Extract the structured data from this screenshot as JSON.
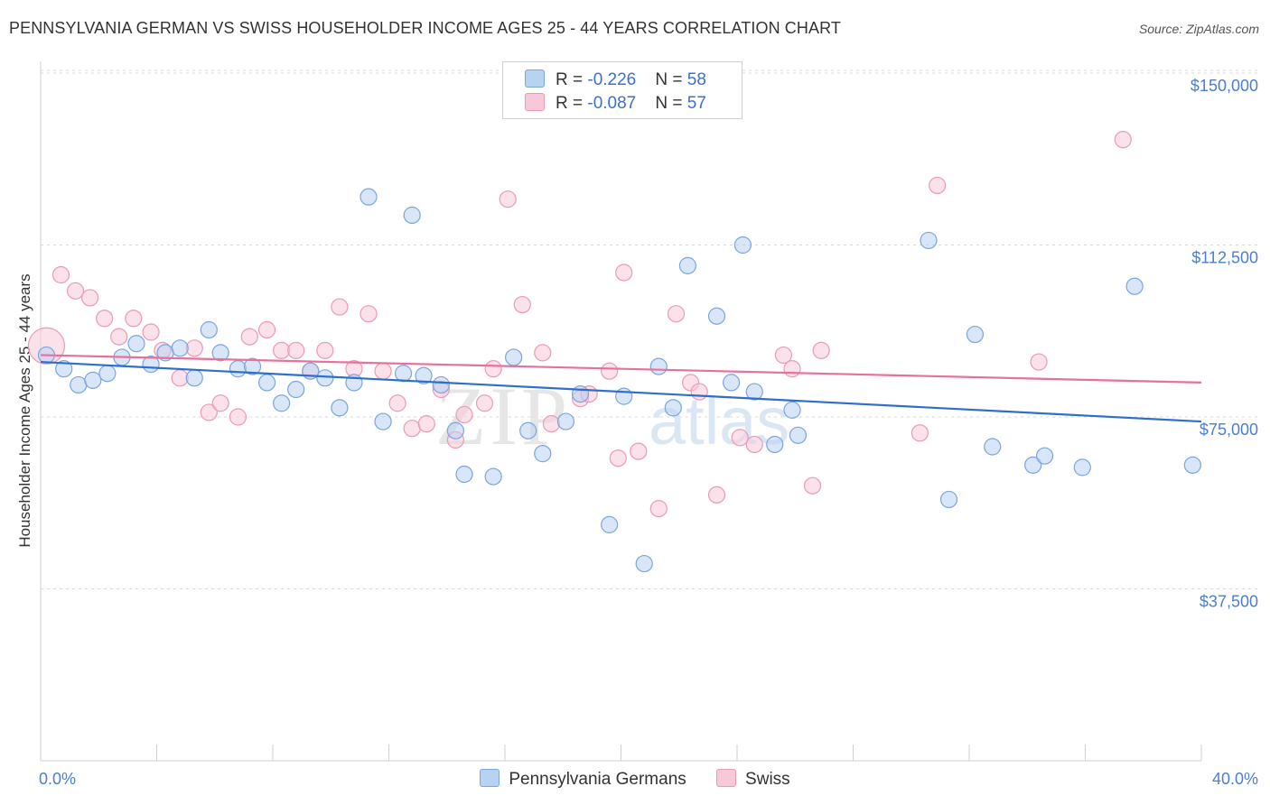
{
  "header": {
    "title": "PENNSYLVANIA GERMAN VS SWISS HOUSEHOLDER INCOME AGES 25 - 44 YEARS CORRELATION CHART",
    "source": "Source: ZipAtlas.com"
  },
  "legend": {
    "series1": {
      "r_label": "R = ",
      "r_value": "-0.226",
      "n_label": "N = ",
      "n_value": "58"
    },
    "series2": {
      "r_label": "R = ",
      "r_value": "-0.087",
      "n_label": "N = ",
      "n_value": "57"
    }
  },
  "watermark": {
    "zip": "ZIP",
    "atlas": "atlas"
  },
  "colors": {
    "blue_fill": "#b8d2f2",
    "blue_stroke": "#7aa5dd",
    "blue_line": "#2e6fce",
    "pink_fill": "#f8c8d8",
    "pink_stroke": "#eb9ab4",
    "pink_line": "#e8709a",
    "axis_text": "#4a7fd0",
    "grid": "#d8d8d8"
  },
  "chart_data": {
    "type": "scatter",
    "title": "PENNSYLVANIA GERMAN VS SWISS HOUSEHOLDER INCOME AGES 25 - 44 YEARS CORRELATION CHART",
    "xlabel": "",
    "ylabel": "Householder Income Ages 25 - 44 years",
    "xlim": [
      0,
      40
    ],
    "ylim": [
      0,
      155000
    ],
    "x_tick_labels": [
      "0.0%",
      "40.0%"
    ],
    "y_ticks": [
      37500,
      75000,
      112500,
      150000
    ],
    "y_tick_labels": [
      "$37,500",
      "$75,000",
      "$112,500",
      "$150,000"
    ],
    "grid": "horizontal dashed",
    "legend_position": "top-center and bottom",
    "series": [
      {
        "name": "Pennsylvania Germans",
        "color": "#7aa5dd",
        "trend": [
          [
            0,
            87000
          ],
          [
            40,
            74000
          ]
        ],
        "points": [
          [
            0.2,
            88500
          ],
          [
            0.8,
            85500
          ],
          [
            1.3,
            82000
          ],
          [
            1.8,
            83000
          ],
          [
            2.3,
            84500
          ],
          [
            2.8,
            88000
          ],
          [
            3.3,
            91000
          ],
          [
            3.8,
            86500
          ],
          [
            4.3,
            89000
          ],
          [
            4.8,
            90000
          ],
          [
            5.3,
            83500
          ],
          [
            5.8,
            94000
          ],
          [
            6.2,
            89000
          ],
          [
            6.8,
            85500
          ],
          [
            7.3,
            86000
          ],
          [
            7.8,
            82500
          ],
          [
            8.3,
            78000
          ],
          [
            8.8,
            81000
          ],
          [
            9.3,
            85000
          ],
          [
            9.8,
            83500
          ],
          [
            10.3,
            77000
          ],
          [
            10.8,
            82500
          ],
          [
            11.3,
            123000
          ],
          [
            11.8,
            74000
          ],
          [
            12.5,
            84500
          ],
          [
            12.8,
            119000
          ],
          [
            13.2,
            84000
          ],
          [
            13.8,
            82000
          ],
          [
            14.3,
            72000
          ],
          [
            14.6,
            62500
          ],
          [
            15.6,
            62000
          ],
          [
            16.3,
            88000
          ],
          [
            16.8,
            72000
          ],
          [
            17.3,
            67000
          ],
          [
            18.1,
            74000
          ],
          [
            18.6,
            80000
          ],
          [
            19.6,
            51500
          ],
          [
            20.1,
            79500
          ],
          [
            20.8,
            43000
          ],
          [
            21.3,
            86000
          ],
          [
            21.8,
            77000
          ],
          [
            22.3,
            108000
          ],
          [
            23.3,
            97000
          ],
          [
            23.8,
            82500
          ],
          [
            24.2,
            112500
          ],
          [
            24.6,
            80500
          ],
          [
            25.3,
            69000
          ],
          [
            25.9,
            76500
          ],
          [
            26.1,
            71000
          ],
          [
            30.6,
            113500
          ],
          [
            31.3,
            57000
          ],
          [
            32.2,
            93000
          ],
          [
            32.8,
            68500
          ],
          [
            34.2,
            64500
          ],
          [
            34.6,
            66500
          ],
          [
            35.9,
            64000
          ],
          [
            37.7,
            103500
          ],
          [
            39.7,
            64500
          ]
        ]
      },
      {
        "name": "Swiss",
        "color": "#eb9ab4",
        "trend": [
          [
            0,
            88500
          ],
          [
            40,
            82500
          ]
        ],
        "points": [
          [
            0.2,
            90500
          ],
          [
            0.7,
            106000
          ],
          [
            1.2,
            102500
          ],
          [
            1.7,
            101000
          ],
          [
            2.2,
            96500
          ],
          [
            2.7,
            92500
          ],
          [
            3.2,
            96500
          ],
          [
            3.8,
            93500
          ],
          [
            4.2,
            89500
          ],
          [
            4.8,
            83500
          ],
          [
            5.3,
            90000
          ],
          [
            5.8,
            76000
          ],
          [
            6.2,
            78000
          ],
          [
            6.8,
            75000
          ],
          [
            7.2,
            92500
          ],
          [
            7.8,
            94000
          ],
          [
            8.3,
            89500
          ],
          [
            8.8,
            89500
          ],
          [
            9.3,
            85000
          ],
          [
            9.8,
            89500
          ],
          [
            10.3,
            99000
          ],
          [
            10.8,
            85500
          ],
          [
            11.3,
            97500
          ],
          [
            11.8,
            85000
          ],
          [
            12.3,
            78000
          ],
          [
            12.8,
            72500
          ],
          [
            13.3,
            73500
          ],
          [
            13.8,
            81000
          ],
          [
            14.3,
            70000
          ],
          [
            14.6,
            75500
          ],
          [
            15.3,
            78000
          ],
          [
            15.6,
            85500
          ],
          [
            16.1,
            122500
          ],
          [
            16.6,
            99500
          ],
          [
            17.3,
            89000
          ],
          [
            17.6,
            73500
          ],
          [
            18.6,
            79000
          ],
          [
            18.9,
            80000
          ],
          [
            19.6,
            85000
          ],
          [
            19.9,
            66000
          ],
          [
            20.1,
            106500
          ],
          [
            20.6,
            67500
          ],
          [
            21.3,
            55000
          ],
          [
            21.9,
            97500
          ],
          [
            22.4,
            82500
          ],
          [
            22.7,
            80500
          ],
          [
            23.3,
            58000
          ],
          [
            24.1,
            70500
          ],
          [
            24.6,
            69000
          ],
          [
            25.6,
            88500
          ],
          [
            25.9,
            85500
          ],
          [
            26.6,
            60000
          ],
          [
            26.9,
            89500
          ],
          [
            30.3,
            71500
          ],
          [
            30.9,
            125500
          ],
          [
            34.4,
            87000
          ],
          [
            37.3,
            135500
          ]
        ]
      }
    ]
  }
}
